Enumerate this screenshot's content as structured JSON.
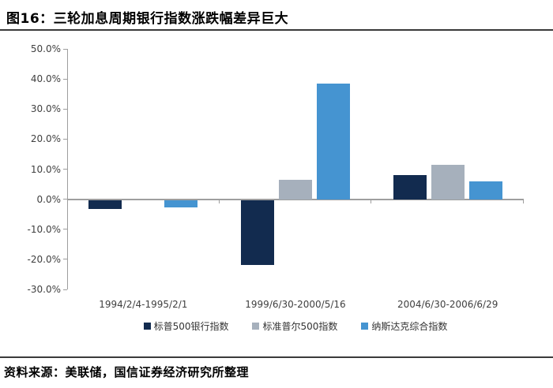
{
  "header": {
    "title": "图16：三轮加息周期银行指数涨跌幅差异巨大"
  },
  "chart_data": {
    "type": "bar",
    "title": "三轮加息周期银行指数涨跌幅差异巨大",
    "categories": [
      "1994/2/4-1995/2/1",
      "1999/6/30-2000/5/16",
      "2004/6/30-2006/6/29"
    ],
    "series": [
      {
        "id": "sp500-bank-index",
        "name": "标普500银行指数",
        "color": "#122B4F",
        "values": [
          -3.0,
          -21.5,
          8.0
        ]
      },
      {
        "id": "sp500-index",
        "name": "标准普尔500指数",
        "color": "#A6B0BC",
        "values": [
          0.0,
          6.5,
          11.5
        ]
      },
      {
        "id": "nasdaq-composite-index",
        "name": "纳斯达克综合指数",
        "color": "#4594D1",
        "values": [
          -2.5,
          38.5,
          6.0
        ]
      }
    ],
    "y_axis": {
      "min": -30,
      "max": 50,
      "step": 10,
      "unit": "%",
      "tick_labels": [
        "50.0%",
        "40.0%",
        "30.0%",
        "20.0%",
        "10.0%",
        "0.0%",
        "-10.0%",
        "-20.0%",
        "-30.0%"
      ]
    },
    "xlabel": "",
    "ylabel": "",
    "grid": false,
    "legend_position": "bottom"
  },
  "footer": {
    "source": "资料来源：美联储，国信证券经济研究所整理"
  },
  "colors": {
    "axis": "#9e9e9e",
    "rule": "#3a3a3a",
    "tick_text": "#3f3f3f",
    "title_text": "#000000"
  }
}
